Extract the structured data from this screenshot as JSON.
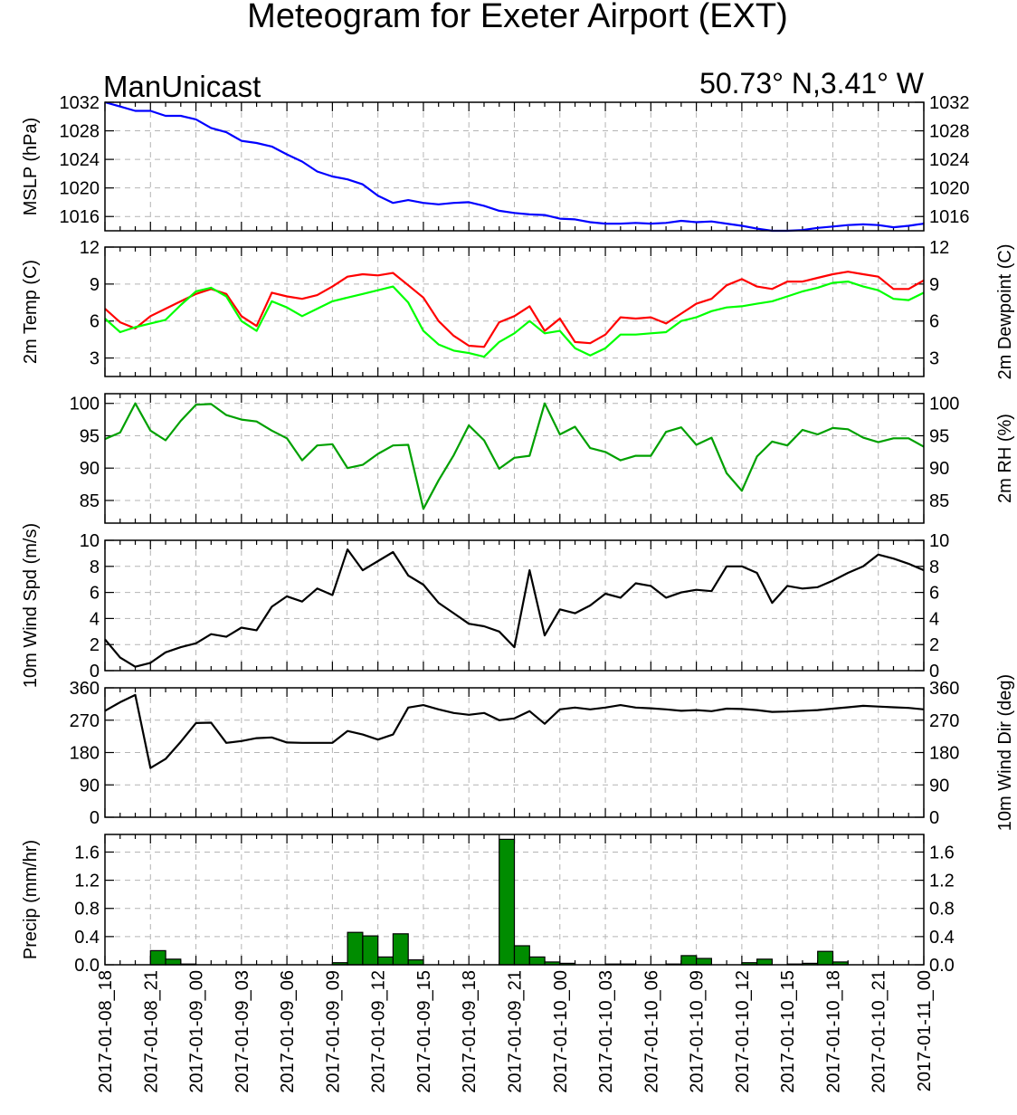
{
  "title": "Meteogram for Exeter Airport (EXT)",
  "model_label": "ManUnicast",
  "location_label": "50.73° N,3.41° W",
  "x_tick_labels": [
    "2017-01-08_18",
    "2017-01-08_21",
    "2017-01-09_00",
    "2017-01-09_03",
    "2017-01-09_06",
    "2017-01-09_09",
    "2017-01-09_12",
    "2017-01-09_15",
    "2017-01-09_18",
    "2017-01-09_21",
    "2017-01-10_00",
    "2017-01-10_03",
    "2017-01-10_06",
    "2017-01-10_09",
    "2017-01-10_12",
    "2017-01-10_15",
    "2017-01-10_18",
    "2017-01-10_21",
    "2017-01-11_00"
  ],
  "colors": {
    "mslp": "#0000ff",
    "temp": "#ff0000",
    "dewpoint": "#00ff00",
    "rh": "#00a000",
    "wind": "#000000",
    "precip_fill": "#008c00",
    "grid": "#b4b4b4"
  },
  "chart_data": [
    {
      "type": "line",
      "panel": "mslp",
      "ylabel": "MSLP (hPa)",
      "ylabel_right": "",
      "yticks": [
        1016,
        1020,
        1024,
        1028,
        1032
      ],
      "ylim": [
        1014,
        1032
      ],
      "xlim": [
        0,
        54
      ],
      "grid": true,
      "series": [
        {
          "color": "#0000ff",
          "x": [
            0,
            1,
            2,
            3,
            4,
            5,
            6,
            7,
            8,
            9,
            10,
            11,
            12,
            13,
            14,
            15,
            16,
            17,
            18,
            19,
            20,
            21,
            22,
            23,
            24,
            25,
            26,
            27,
            28,
            29,
            30,
            31,
            32,
            33,
            34,
            35,
            36,
            37,
            38,
            39,
            40,
            41,
            42,
            43,
            44,
            45,
            46,
            47,
            48,
            49,
            50,
            51,
            52,
            53,
            54
          ],
          "values": [
            1032,
            1031.4,
            1030.8,
            1030.8,
            1030.1,
            1030.1,
            1029.6,
            1028.4,
            1027.8,
            1026.6,
            1026.3,
            1025.8,
            1024.7,
            1023.7,
            1022.3,
            1021.6,
            1021.2,
            1020.5,
            1018.9,
            1017.9,
            1018.3,
            1017.9,
            1017.7,
            1017.9,
            1018.0,
            1017.5,
            1016.8,
            1016.5,
            1016.3,
            1016.2,
            1015.7,
            1015.6,
            1015.2,
            1015.0,
            1015.0,
            1015.1,
            1015.0,
            1015.1,
            1015.4,
            1015.2,
            1015.3,
            1015.0,
            1014.7,
            1014.3,
            1014.0,
            1014.0,
            1014.1,
            1014.4,
            1014.6,
            1014.8,
            1014.9,
            1014.8,
            1014.5,
            1014.7,
            1015.0
          ]
        }
      ]
    },
    {
      "type": "line",
      "panel": "temperature",
      "ylabel": "2m Temp (C)",
      "ylabel_right": "2m Dewpoint (C)",
      "yticks": [
        3,
        6,
        9,
        12
      ],
      "ylim": [
        1.5,
        12
      ],
      "xlim": [
        0,
        54
      ],
      "grid": true,
      "series": [
        {
          "color": "#ff0000",
          "x": [
            0,
            1,
            2,
            3,
            4,
            5,
            6,
            7,
            8,
            9,
            10,
            11,
            12,
            13,
            14,
            15,
            16,
            17,
            18,
            19,
            20,
            21,
            22,
            23,
            24,
            25,
            26,
            27,
            28,
            29,
            30,
            31,
            32,
            33,
            34,
            35,
            36,
            37,
            38,
            39,
            40,
            41,
            42,
            43,
            44,
            45,
            46,
            47,
            48,
            49,
            50,
            51,
            52,
            53,
            54
          ],
          "values": [
            7.0,
            5.9,
            5.4,
            6.4,
            7.0,
            7.6,
            8.2,
            8.6,
            8.2,
            6.4,
            5.6,
            8.3,
            8.0,
            7.8,
            8.1,
            8.8,
            9.6,
            9.8,
            9.7,
            9.9,
            8.9,
            7.9,
            6.0,
            4.8,
            4.0,
            3.9,
            5.9,
            6.4,
            7.2,
            5.2,
            6.2,
            4.3,
            4.2,
            4.9,
            6.3,
            6.2,
            6.3,
            5.8,
            6.6,
            7.4,
            7.8,
            8.9,
            9.4,
            8.8,
            8.6,
            9.2,
            9.2,
            9.5,
            9.8,
            10.0,
            9.8,
            9.6,
            8.6,
            8.6,
            9.3
          ]
        },
        {
          "color": "#00ff00",
          "x": [
            0,
            1,
            2,
            3,
            4,
            5,
            6,
            7,
            8,
            9,
            10,
            11,
            12,
            13,
            14,
            15,
            16,
            17,
            18,
            19,
            20,
            21,
            22,
            23,
            24,
            25,
            26,
            27,
            28,
            29,
            30,
            31,
            32,
            33,
            34,
            35,
            36,
            37,
            38,
            39,
            40,
            41,
            42,
            43,
            44,
            45,
            46,
            47,
            48,
            49,
            50,
            51,
            52,
            53,
            54
          ],
          "values": [
            6.2,
            5.1,
            5.5,
            5.8,
            6.1,
            7.3,
            8.4,
            8.7,
            8.0,
            6.0,
            5.2,
            7.6,
            7.1,
            6.4,
            7.0,
            7.6,
            7.9,
            8.2,
            8.5,
            8.8,
            7.5,
            5.2,
            4.1,
            3.6,
            3.4,
            3.1,
            4.3,
            5.0,
            6.0,
            5.0,
            5.2,
            3.8,
            3.2,
            3.8,
            4.9,
            4.9,
            5.0,
            5.1,
            6.0,
            6.3,
            6.8,
            7.1,
            7.2,
            7.4,
            7.6,
            8.0,
            8.4,
            8.7,
            9.1,
            9.2,
            8.8,
            8.5,
            7.8,
            7.7,
            8.3
          ]
        }
      ]
    },
    {
      "type": "line",
      "panel": "rh",
      "ylabel": "",
      "ylabel_right": "2m RH (%)",
      "yticks": [
        85,
        90,
        95,
        100
      ],
      "ylim": [
        81.5,
        101.5
      ],
      "xlim": [
        0,
        54
      ],
      "grid": true,
      "series": [
        {
          "color": "#00a000",
          "x": [
            0,
            1,
            2,
            3,
            4,
            5,
            6,
            7,
            8,
            9,
            10,
            11,
            12,
            13,
            14,
            15,
            16,
            17,
            18,
            19,
            20,
            21,
            22,
            23,
            24,
            25,
            26,
            27,
            28,
            29,
            30,
            31,
            32,
            33,
            34,
            35,
            36,
            37,
            38,
            39,
            40,
            41,
            42,
            43,
            44,
            45,
            46,
            47,
            48,
            49,
            50,
            51,
            52,
            53,
            54
          ],
          "values": [
            94.5,
            95.5,
            100,
            95.8,
            94.3,
            97.3,
            99.8,
            99.9,
            98.2,
            97.5,
            97.2,
            95.8,
            94.6,
            91.2,
            93.5,
            93.7,
            90.0,
            90.5,
            92.2,
            93.5,
            93.6,
            83.7,
            88.1,
            92.0,
            96.6,
            94.3,
            89.9,
            91.6,
            91.9,
            100,
            95.2,
            96.4,
            93.1,
            92.5,
            91.2,
            91.9,
            91.9,
            95.6,
            96.3,
            93.6,
            94.7,
            89.2,
            86.5,
            91.8,
            94.1,
            93.5,
            95.9,
            95.2,
            96.2,
            96.0,
            94.7,
            94.0,
            94.6,
            94.6,
            93.3
          ]
        }
      ]
    },
    {
      "type": "line",
      "panel": "wind_speed",
      "ylabel": "10m Wind Spd (m/s)",
      "ylabel_right": "",
      "yticks": [
        0,
        2,
        4,
        6,
        8,
        10
      ],
      "ylim": [
        0,
        10
      ],
      "xlim": [
        0,
        54
      ],
      "grid": true,
      "series": [
        {
          "color": "#000000",
          "x": [
            0,
            1,
            2,
            3,
            4,
            5,
            6,
            7,
            8,
            9,
            10,
            11,
            12,
            13,
            14,
            15,
            16,
            17,
            18,
            19,
            20,
            21,
            22,
            23,
            24,
            25,
            26,
            27,
            28,
            29,
            30,
            31,
            32,
            33,
            34,
            35,
            36,
            37,
            38,
            39,
            40,
            41,
            42,
            43,
            44,
            45,
            46,
            47,
            48,
            49,
            50,
            51,
            52,
            53,
            54
          ],
          "values": [
            2.4,
            1.0,
            0.3,
            0.6,
            1.4,
            1.8,
            2.1,
            2.8,
            2.6,
            3.3,
            3.1,
            4.9,
            5.7,
            5.3,
            6.3,
            5.8,
            9.3,
            7.7,
            8.4,
            9.1,
            7.3,
            6.6,
            5.2,
            4.4,
            3.6,
            3.4,
            3.0,
            1.8,
            7.7,
            2.7,
            4.7,
            4.4,
            5.0,
            5.9,
            5.6,
            6.7,
            6.5,
            5.6,
            6.0,
            6.2,
            6.1,
            8.0,
            8.0,
            7.5,
            5.2,
            6.5,
            6.3,
            6.4,
            6.9,
            7.5,
            8.0,
            8.9,
            8.6,
            8.2,
            7.7
          ]
        }
      ]
    },
    {
      "type": "line",
      "panel": "wind_direction",
      "ylabel": "",
      "ylabel_right": "10m Wind Dir (deg)",
      "yticks": [
        0,
        90,
        180,
        270,
        360
      ],
      "ylim": [
        0,
        360
      ],
      "xlim": [
        0,
        54
      ],
      "grid": true,
      "series": [
        {
          "color": "#000000",
          "x": [
            0,
            1,
            2,
            3,
            4,
            5,
            6,
            7,
            8,
            9,
            10,
            11,
            12,
            13,
            14,
            15,
            16,
            17,
            18,
            19,
            20,
            21,
            22,
            23,
            24,
            25,
            26,
            27,
            28,
            29,
            30,
            31,
            32,
            33,
            34,
            35,
            36,
            37,
            38,
            39,
            40,
            41,
            42,
            43,
            44,
            45,
            46,
            47,
            48,
            49,
            50,
            51,
            52,
            53,
            54
          ],
          "values": [
            296,
            320,
            340,
            137,
            162,
            210,
            262,
            263,
            207,
            212,
            220,
            222,
            208,
            207,
            207,
            207,
            240,
            230,
            216,
            230,
            305,
            312,
            300,
            290,
            285,
            290,
            270,
            275,
            295,
            260,
            300,
            305,
            300,
            305,
            312,
            305,
            303,
            300,
            296,
            298,
            295,
            302,
            301,
            298,
            293,
            294,
            296,
            298,
            302,
            306,
            310,
            308,
            306,
            304,
            300
          ]
        }
      ]
    },
    {
      "type": "bar",
      "panel": "precip",
      "ylabel": "Precip (mm/hr)",
      "ylabel_right": "",
      "yticks": [
        0.0,
        0.4,
        0.8,
        1.2,
        1.6
      ],
      "ytick_labels": [
        "0.0",
        "0.4",
        "0.8",
        "1.2",
        "1.6"
      ],
      "ylim": [
        0,
        1.85
      ],
      "xlim": [
        0,
        54
      ],
      "grid": true,
      "color": "#008c00",
      "x": [
        0.5,
        1.5,
        2.5,
        3.5,
        4.5,
        5.5,
        6.5,
        7.5,
        8.5,
        9.5,
        10.5,
        11.5,
        12.5,
        13.5,
        14.5,
        15.5,
        16.5,
        17.5,
        18.5,
        19.5,
        20.5,
        21.5,
        22.5,
        23.5,
        24.5,
        25.5,
        26.5,
        27.5,
        28.5,
        29.5,
        30.5,
        31.5,
        32.5,
        33.5,
        34.5,
        35.5,
        36.5,
        37.5,
        38.5,
        39.5,
        40.5,
        41.5,
        42.5,
        43.5,
        44.5,
        45.5,
        46.5,
        47.5,
        48.5,
        49.5,
        50.5,
        51.5,
        52.5,
        53.5
      ],
      "values": [
        0,
        0,
        0,
        0.2,
        0.08,
        0.01,
        0,
        0,
        0,
        0,
        0,
        0,
        0,
        0,
        0,
        0.03,
        0.46,
        0.41,
        0.11,
        0.44,
        0.07,
        0,
        0,
        0,
        0,
        0,
        1.78,
        0.27,
        0.11,
        0.04,
        0.02,
        0,
        0,
        0.01,
        0.01,
        0,
        0,
        0.01,
        0.13,
        0.09,
        0,
        0,
        0.03,
        0.08,
        0,
        0.01,
        0.02,
        0.19,
        0.04,
        0,
        0,
        0,
        0,
        0
      ]
    }
  ]
}
